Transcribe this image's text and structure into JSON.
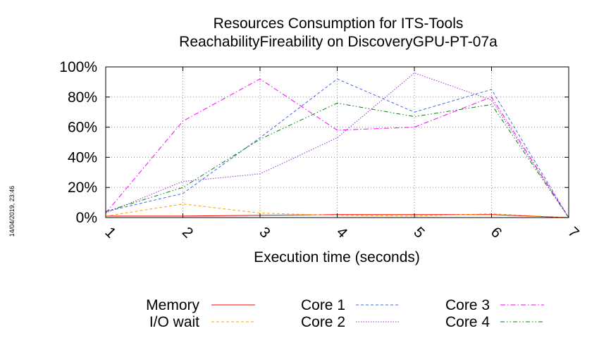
{
  "timestamp": "14/04/2019, 23:46",
  "chart_data": {
    "type": "line",
    "title": "Resources Consumption for ITS-Tools",
    "subtitle": "ReachabilityFireability on DiscoveryGPU-PT-07a",
    "xlabel": "Execution time (seconds)",
    "ylabel": "",
    "x": [
      1,
      2,
      3,
      4,
      5,
      6,
      7
    ],
    "xlim": [
      1,
      7
    ],
    "ylim": [
      0,
      100
    ],
    "xticks": [
      "1",
      "2",
      "3",
      "4",
      "5",
      "6",
      "7"
    ],
    "yticks": [
      "0%",
      "20%",
      "40%",
      "60%",
      "80%",
      "100%"
    ],
    "grid": true,
    "legend": "bottom",
    "series": [
      {
        "name": "Memory",
        "color": "#ff0000",
        "dash": "solid",
        "values": [
          1,
          1,
          1.5,
          2,
          2,
          2,
          0
        ]
      },
      {
        "name": "I/O wait",
        "color": "#ffa500",
        "dash": "dashed",
        "values": [
          1,
          9,
          3,
          1.5,
          1,
          2.5,
          0
        ]
      },
      {
        "name": "Core 1",
        "color": "#4169e1",
        "dash": "dashed",
        "values": [
          4,
          16,
          53,
          92,
          70,
          85,
          0
        ]
      },
      {
        "name": "Core 2",
        "color": "#9932cc",
        "dash": "dotted",
        "values": [
          3,
          24,
          29,
          53,
          96,
          78,
          0
        ]
      },
      {
        "name": "Core 3",
        "color": "#ff00ff",
        "dash": "dash-dot",
        "values": [
          3,
          64,
          92,
          58,
          60,
          80,
          0
        ]
      },
      {
        "name": "Core 4",
        "color": "#008000",
        "dash": "dash-dot-dot",
        "values": [
          4,
          20,
          52,
          76,
          67,
          75,
          0
        ]
      }
    ]
  }
}
